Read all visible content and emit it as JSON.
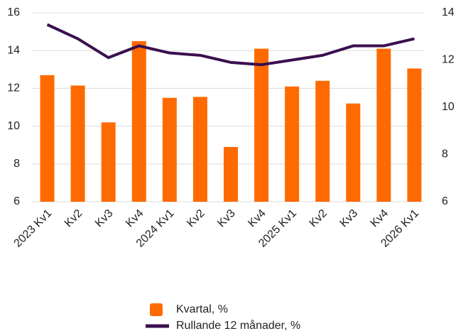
{
  "chart_data": {
    "type": "bar-line",
    "categories": [
      "2023 Kv1",
      "Kv2",
      "Kv3",
      "Kv4",
      "2024 Kv1",
      "Kv2",
      "Kv3",
      "Kv4",
      "2025 Kv1",
      "Kv2",
      "Kv3",
      "Kv4",
      "2026 Kv1"
    ],
    "series": [
      {
        "name": "Kvartal, %",
        "type": "bar",
        "color": "#ff6a00",
        "values": [
          12.7,
          12.15,
          10.2,
          14.5,
          11.5,
          11.55,
          8.9,
          14.1,
          12.1,
          12.4,
          11.2,
          14.1,
          13.05
        ]
      },
      {
        "name": "Rullande 12 månader, %",
        "type": "line",
        "axis": "y2",
        "color": "#3b0f4f",
        "values": [
          13.5,
          12.9,
          12.1,
          12.6,
          12.3,
          12.2,
          11.9,
          11.8,
          12.0,
          12.2,
          12.6,
          12.6,
          12.9
        ]
      }
    ],
    "ylim": [
      6,
      16
    ],
    "yticks": [
      6,
      8,
      10,
      12,
      14,
      16
    ],
    "y2lim": [
      6,
      14
    ],
    "y2ticks": [
      6,
      8,
      10,
      12,
      14
    ],
    "grid": true,
    "legend": "bottom"
  }
}
